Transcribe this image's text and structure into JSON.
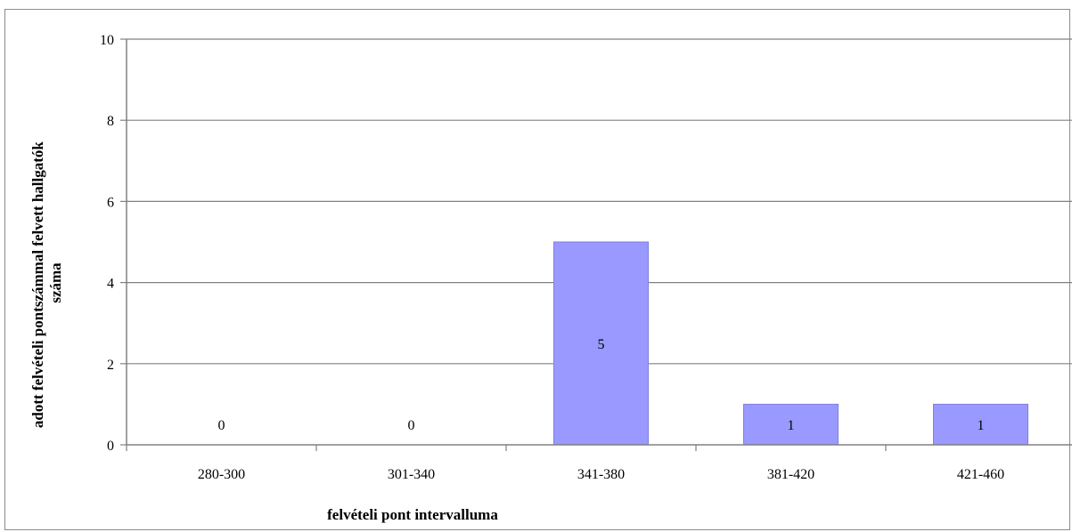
{
  "chart_data": {
    "type": "bar",
    "categories": [
      "280-300",
      "301-340",
      "341-380",
      "381-420",
      "421-460"
    ],
    "values": [
      0,
      0,
      5,
      1,
      1
    ],
    "data_labels": [
      "0",
      "0",
      "5",
      "1",
      "1"
    ],
    "title": "",
    "xlabel": "felvételi pont intervalluma",
    "ylabel_lines": [
      "adott felvételi pontszámmal felvett hallgatók",
      "száma"
    ],
    "ylim": [
      0,
      10
    ],
    "yticks": [
      0,
      2,
      4,
      6,
      8,
      10
    ],
    "grid": true,
    "legend": "none",
    "bar_color": "#9999ff",
    "bar_edge_color": "#7f7fe0",
    "grid_color": "#808080",
    "axis_color": "#808080"
  }
}
